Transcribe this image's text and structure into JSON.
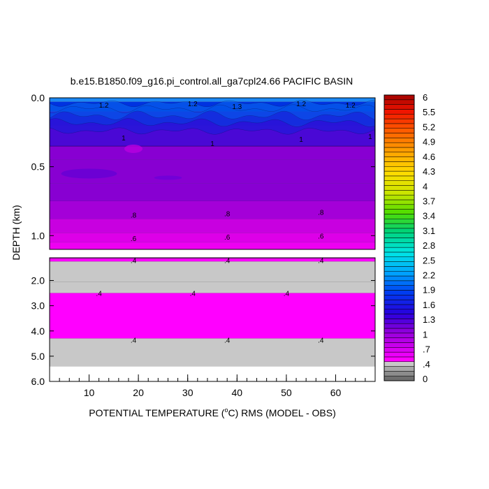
{
  "chart_data": {
    "type": "heatmap",
    "title": "b.e15.B1850.f09_g16.pi_control.all_ga7cpl24.66 PACIFIC BASIN",
    "xlabel_prefix": "POTENTIAL TEMPERATURE (",
    "xlabel_sup": "o",
    "xlabel_suffix": "C) RMS (MODEL - OBS)",
    "ylabel": "DEPTH (km)",
    "xlim": [
      2,
      68
    ],
    "x_ticks": [
      "10",
      "20",
      "30",
      "40",
      "50",
      "60"
    ],
    "upper_panel": {
      "depth_range_km": [
        0.0,
        1.1
      ],
      "y_ticks": [
        "0.0",
        "0.5",
        "1.0"
      ]
    },
    "lower_panel": {
      "depth_range_km": [
        1.1,
        6.0
      ],
      "y_ticks": [
        "2.0",
        "3.0",
        "4.0",
        "5.0",
        "6.0"
      ]
    },
    "colorbar": {
      "labels": [
        "6",
        "5.5",
        "5.2",
        "4.9",
        "4.6",
        "4.3",
        "4",
        "3.7",
        "3.4",
        "3.1",
        "2.8",
        "2.5",
        "2.2",
        "1.9",
        "1.6",
        "1.3",
        "1",
        ".7",
        ".4",
        "0"
      ],
      "levels": [
        0,
        0.1,
        0.2,
        0.3,
        0.4,
        0.5,
        0.6,
        0.7,
        0.8,
        0.9,
        1.0,
        1.1,
        1.2,
        1.3,
        1.4,
        1.5,
        1.6,
        1.7,
        1.8,
        1.9,
        2.0,
        2.1,
        2.2,
        2.3,
        2.4,
        2.5,
        2.6,
        2.7,
        2.8,
        2.9,
        3.0,
        3.1,
        3.2,
        3.3,
        3.4,
        3.5,
        3.6,
        3.7,
        3.8,
        3.9,
        4.0,
        4.1,
        4.2,
        4.3,
        4.4,
        4.5,
        4.6,
        4.7,
        4.8,
        4.9,
        5.0,
        5.1,
        5.2,
        5.3,
        5.4,
        5.5,
        5.6,
        5.7,
        5.8,
        5.9,
        6.0
      ]
    },
    "depth_bands_upper": [
      {
        "from": 0.0,
        "to": 0.03,
        "value": 1.6
      },
      {
        "from": 0.03,
        "to": 0.1,
        "value": 1.3
      },
      {
        "from": 0.1,
        "to": 0.2,
        "value": 1.1
      },
      {
        "from": 0.2,
        "to": 0.32,
        "value": 0.95
      },
      {
        "from": 0.32,
        "to": 0.45,
        "value": 0.9
      },
      {
        "from": 0.45,
        "to": 0.62,
        "value": 0.95
      },
      {
        "from": 0.62,
        "to": 0.75,
        "value": 0.9
      },
      {
        "from": 0.75,
        "to": 0.88,
        "value": 0.85
      },
      {
        "from": 0.88,
        "to": 0.98,
        "value": 0.75
      },
      {
        "from": 0.98,
        "to": 1.05,
        "value": 0.65
      },
      {
        "from": 1.05,
        "to": 1.1,
        "value": 0.55
      }
    ],
    "depth_bands_lower": [
      {
        "from": 1.1,
        "to": 1.15,
        "value": 0.55
      },
      {
        "from": 1.15,
        "to": 1.25,
        "value": 0.45
      },
      {
        "from": 1.25,
        "to": 2.05,
        "value": 0.35
      },
      {
        "from": 2.05,
        "to": 2.5,
        "value": 0.3
      },
      {
        "from": 2.5,
        "to": 4.3,
        "value": 0.45
      },
      {
        "from": 4.3,
        "to": 5.4,
        "value": 0.3
      },
      {
        "from": 5.4,
        "to": 6.0,
        "value": null
      }
    ],
    "contour_labels": [
      {
        "text": "1.2",
        "x": 13,
        "depth": 0.05
      },
      {
        "text": "1.2",
        "x": 31,
        "depth": 0.04
      },
      {
        "text": "1.3",
        "x": 40,
        "depth": 0.06
      },
      {
        "text": "1.2",
        "x": 53,
        "depth": 0.04
      },
      {
        "text": "1.2",
        "x": 63,
        "depth": 0.05
      },
      {
        "text": "1",
        "x": 17,
        "depth": 0.29
      },
      {
        "text": "1",
        "x": 35,
        "depth": 0.33
      },
      {
        "text": "1",
        "x": 53,
        "depth": 0.3
      },
      {
        "text": "1",
        "x": 67,
        "depth": 0.28
      },
      {
        "text": ".8",
        "x": 19,
        "depth": 0.85
      },
      {
        "text": ".8",
        "x": 38,
        "depth": 0.84
      },
      {
        "text": ".8",
        "x": 57,
        "depth": 0.83
      },
      {
        "text": ".6",
        "x": 19,
        "depth": 1.02
      },
      {
        "text": ".6",
        "x": 38,
        "depth": 1.01
      },
      {
        "text": ".6",
        "x": 57,
        "depth": 1.0
      },
      {
        "text": ".4",
        "x": 19,
        "depth": 1.2
      },
      {
        "text": ".4",
        "x": 38,
        "depth": 1.2
      },
      {
        "text": ".4",
        "x": 57,
        "depth": 1.2
      },
      {
        "text": ".4",
        "x": 12,
        "depth": 2.5
      },
      {
        "text": ".4",
        "x": 31,
        "depth": 2.5
      },
      {
        "text": ".4",
        "x": 50,
        "depth": 2.5
      },
      {
        "text": ".4",
        "x": 19,
        "depth": 4.35
      },
      {
        "text": ".4",
        "x": 38,
        "depth": 4.35
      },
      {
        "text": ".4",
        "x": 57,
        "depth": 4.35
      }
    ]
  }
}
